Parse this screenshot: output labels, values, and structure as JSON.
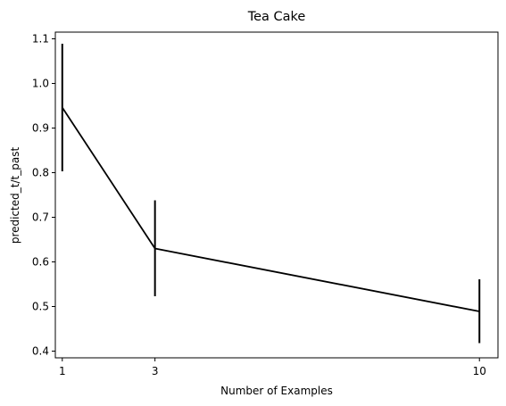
{
  "chart_data": {
    "type": "line",
    "title": "Tea Cake",
    "xlabel": "Number of Examples",
    "ylabel": "predicted_t/t_past",
    "x": [
      1,
      3,
      10
    ],
    "x_tick_labels": [
      "1",
      "3",
      "10"
    ],
    "y_ticks": [
      0.4,
      0.5,
      0.6,
      0.7,
      0.8,
      0.9,
      1.0,
      1.1
    ],
    "y_tick_labels": [
      "0.4",
      "0.5",
      "0.6",
      "0.7",
      "0.8",
      "0.9",
      "1.0",
      "1.1"
    ],
    "xlim": [
      0.85,
      10.4
    ],
    "ylim": [
      0.385,
      1.115
    ],
    "grid": false,
    "series": [
      {
        "values": [
          0.946,
          0.63,
          0.489
        ],
        "err_low": [
          0.803,
          0.523,
          0.418
        ],
        "err_high": [
          1.089,
          0.738,
          0.561
        ],
        "color": "#000000"
      }
    ]
  }
}
